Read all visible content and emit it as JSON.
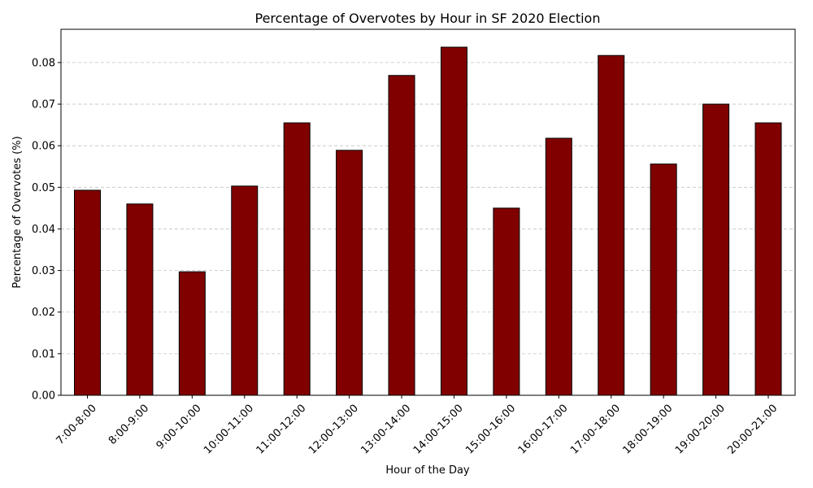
{
  "chart_data": {
    "type": "bar",
    "title": "Percentage of Overvotes by Hour in SF 2020 Election",
    "xlabel": "Hour of the Day",
    "ylabel": "Percentage of Overvotes (%)",
    "categories": [
      "7:00-8:00",
      "8:00-9:00",
      "9:00-10:00",
      "10:00-11:00",
      "11:00-12:00",
      "12:00-13:00",
      "13:00-14:00",
      "14:00-15:00",
      "15:00-16:00",
      "16:00-17:00",
      "17:00-18:00",
      "18:00-19:00",
      "19:00-20:00",
      "20:00-21:00"
    ],
    "values": [
      0.0493,
      0.046,
      0.0297,
      0.0503,
      0.0655,
      0.0589,
      0.0769,
      0.0837,
      0.045,
      0.0618,
      0.0817,
      0.0556,
      0.07,
      0.0655
    ],
    "ylim": [
      0,
      0.088
    ],
    "yticks": [
      "0.00",
      "0.01",
      "0.02",
      "0.03",
      "0.04",
      "0.05",
      "0.06",
      "0.07",
      "0.08"
    ],
    "grid": "y",
    "bar_color": "#800000"
  }
}
